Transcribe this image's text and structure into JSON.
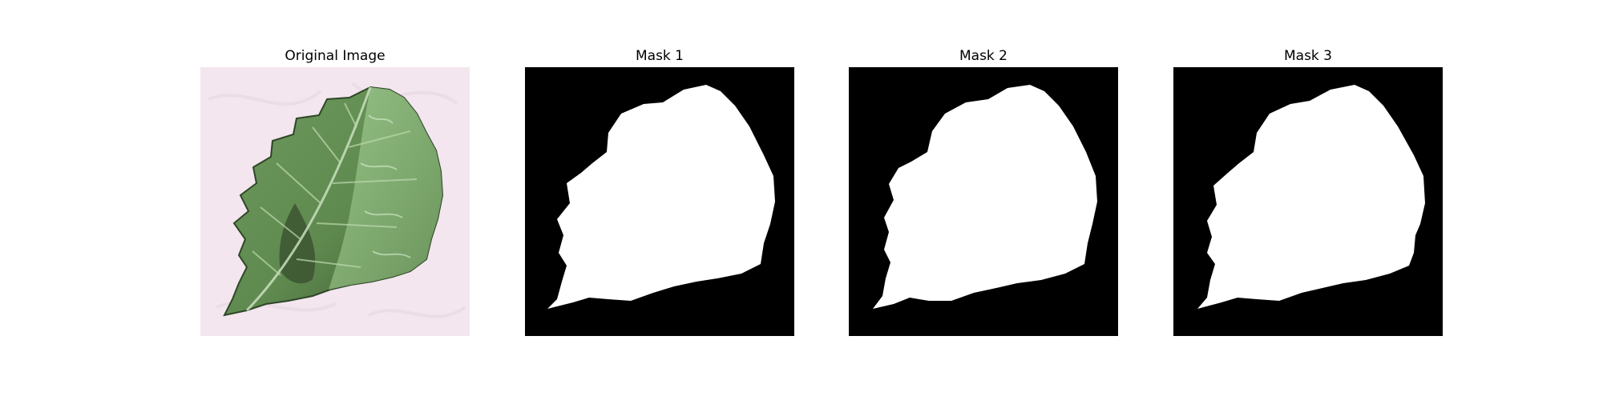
{
  "figure": {
    "panels": [
      {
        "title": "Original Image"
      },
      {
        "title": "Mask 1"
      },
      {
        "title": "Mask 2"
      },
      {
        "title": "Mask 3"
      }
    ]
  },
  "colors": {
    "background": "#ffffff",
    "mask_background": "#000000",
    "mask_foreground": "#ffffff",
    "photo_background": "#f3e6ee",
    "leaf_dark": "#3f5a34",
    "leaf_mid": "#5f8a4f",
    "leaf_light": "#8fb77f"
  }
}
